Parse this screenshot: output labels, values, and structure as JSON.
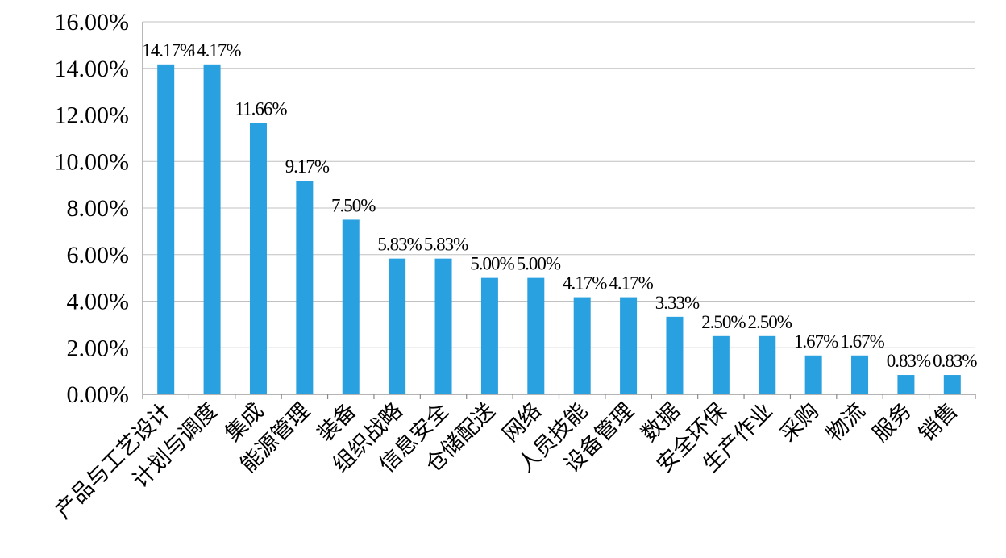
{
  "chart_data": {
    "type": "bar",
    "categories": [
      "产品与工艺设计",
      "计划与调度",
      "集成",
      "能源管理",
      "装备",
      "组织战略",
      "信息安全",
      "仓储配送",
      "网络",
      "人员技能",
      "设备管理",
      "数据",
      "安全环保",
      "生产作业",
      "采购",
      "物流",
      "服务",
      "销售"
    ],
    "values": [
      14.17,
      14.17,
      11.66,
      9.17,
      7.5,
      5.83,
      5.83,
      5.0,
      5.0,
      4.17,
      4.17,
      3.33,
      2.5,
      2.5,
      1.67,
      1.67,
      0.83,
      0.83
    ],
    "data_labels": [
      "14.17%",
      "14.17%",
      "11.66%",
      "9.17%",
      "7.50%",
      "5.83%",
      "5.83%",
      "5.00%",
      "5.00%",
      "4.17%",
      "4.17%",
      "3.33%",
      "2.50%",
      "2.50%",
      "1.67%",
      "1.67%",
      "0.83%",
      "0.83%"
    ],
    "y_ticks": [
      0,
      2,
      4,
      6,
      8,
      10,
      12,
      14,
      16
    ],
    "y_tick_labels": [
      "0.00%",
      "2.00%",
      "4.00%",
      "6.00%",
      "8.00%",
      "10.00%",
      "12.00%",
      "14.00%",
      "16.00%"
    ],
    "ylim": [
      0,
      16
    ],
    "grid": true,
    "bar_color": "#29a0df",
    "title": "",
    "xlabel": "",
    "ylabel": ""
  }
}
